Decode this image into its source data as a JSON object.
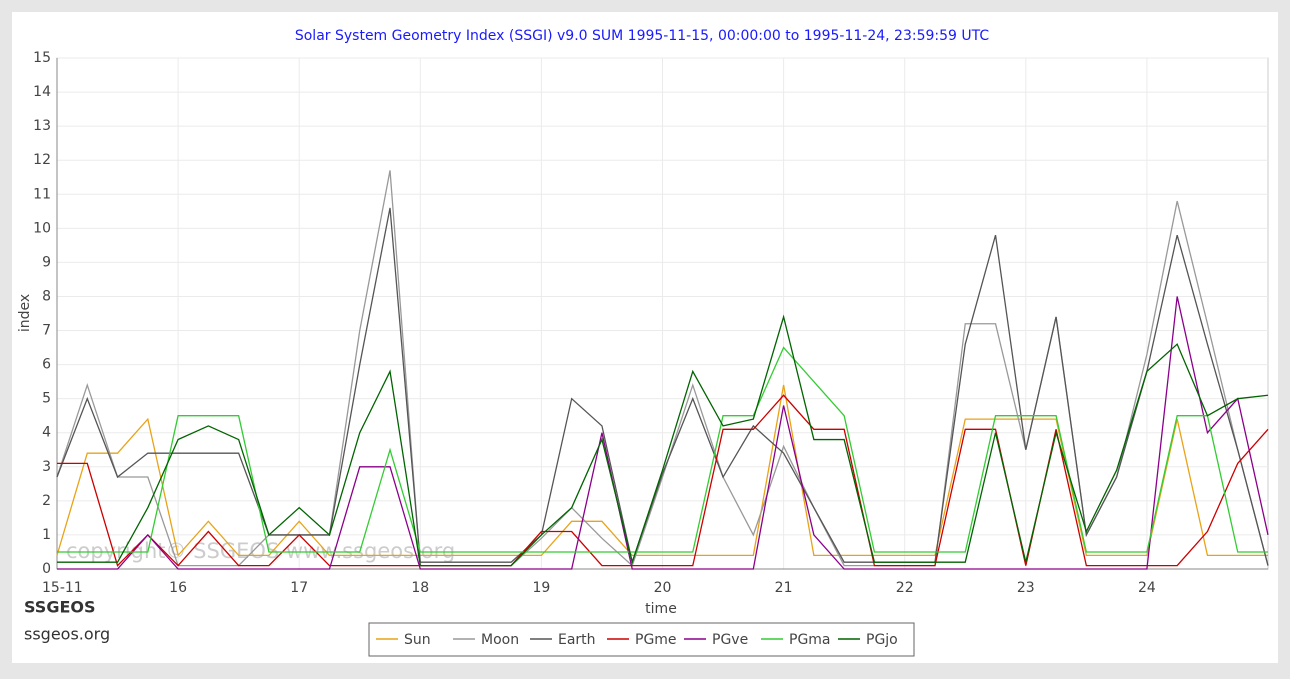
{
  "chart_data": {
    "type": "line",
    "title": "Solar System Geometry Index (SSGI) v9.0 SUM 1995-11-15, 00:00:00 to 1995-11-24, 23:59:59 UTC",
    "x_label": "time",
    "y_label": "index",
    "watermark": "copyright© SSGEOS   www.ssgeos.org",
    "brand": "SSGEOS",
    "brand_url": "ssgeos.org",
    "xlim": [
      15,
      25
    ],
    "ylim": [
      0,
      15
    ],
    "xticks": [
      {
        "value": 15,
        "label": "15-11"
      },
      16,
      17,
      18,
      19,
      20,
      21,
      22,
      23,
      24
    ],
    "yticks": [
      0,
      1,
      2,
      3,
      4,
      5,
      6,
      7,
      8,
      9,
      10,
      11,
      12,
      13,
      14,
      15
    ],
    "grid": true,
    "x": [
      15,
      15.25,
      15.5,
      15.75,
      16,
      16.25,
      16.5,
      16.75,
      17,
      17.25,
      17.5,
      17.75,
      18,
      18.25,
      18.5,
      18.75,
      19,
      19.25,
      19.5,
      19.75,
      20,
      20.25,
      20.5,
      20.75,
      21,
      21.25,
      21.5,
      21.75,
      22,
      22.25,
      22.5,
      22.75,
      23,
      23.25,
      23.5,
      23.75,
      24,
      24.25,
      24.5,
      24.75,
      25
    ],
    "series": [
      {
        "name": "Sun",
        "color": "#e8a317",
        "values": [
          0.4,
          3.4,
          3.4,
          4.4,
          0.4,
          1.4,
          0.4,
          0.4,
          1.4,
          0.4,
          0.4,
          0.4,
          0.4,
          0.4,
          0.4,
          0.4,
          0.4,
          1.4,
          1.4,
          0.4,
          0.4,
          0.4,
          0.4,
          0.4,
          5.4,
          0.4,
          0.4,
          0.4,
          0.4,
          0.4,
          4.4,
          4.4,
          4.4,
          4.4,
          0.4,
          0.4,
          0.4,
          4.4,
          0.4,
          0.4,
          0.4
        ]
      },
      {
        "name": "Moon",
        "color": "#999999",
        "values": [
          2.7,
          5.4,
          2.7,
          2.7,
          0.1,
          0.1,
          0.1,
          1,
          1,
          1,
          7,
          11.7,
          0.1,
          0.1,
          0.1,
          0.1,
          0.9,
          1.8,
          0.9,
          0.1,
          2.7,
          5.4,
          2.7,
          1,
          3.6,
          1.8,
          0.1,
          0.1,
          0.1,
          0.1,
          7.2,
          7.2,
          3.5,
          7.4,
          1,
          2.7,
          6.3,
          10.8,
          7.2,
          3.5,
          0.1
        ]
      },
      {
        "name": "Earth",
        "color": "#555555",
        "values": [
          2.7,
          5,
          2.7,
          3.4,
          3.4,
          3.4,
          3.4,
          1,
          1,
          1,
          6,
          10.6,
          0.2,
          0.2,
          0.2,
          0.2,
          1,
          5,
          4.2,
          0.2,
          2.8,
          5,
          2.7,
          4.2,
          3.4,
          1.8,
          0.2,
          0.2,
          0.2,
          0.2,
          6.6,
          9.8,
          3.5,
          7.4,
          1,
          2.7,
          5.8,
          9.8,
          6.6,
          3.5,
          0.1
        ]
      },
      {
        "name": "PGme",
        "color": "#cc0000",
        "values": [
          3.1,
          3.1,
          0.1,
          1,
          0.1,
          1.1,
          0.1,
          0.1,
          1,
          0.1,
          0.1,
          0.1,
          0.1,
          0.1,
          0.1,
          0.1,
          1.1,
          1.1,
          0.1,
          0.1,
          0.1,
          0.1,
          4.1,
          4.1,
          5.1,
          4.1,
          4.1,
          0.1,
          0.1,
          0.1,
          4.1,
          4.1,
          0.1,
          4.1,
          0.1,
          0.1,
          0.1,
          0.1,
          1.1,
          3.1,
          4.1
        ]
      },
      {
        "name": "PGve",
        "color": "#8b008b",
        "values": [
          0,
          0,
          0,
          1,
          0,
          0,
          0,
          0,
          0,
          0,
          3,
          3,
          0,
          0,
          0,
          0,
          0,
          0,
          4,
          0,
          0,
          0,
          0,
          0,
          4.8,
          1,
          0,
          0,
          0,
          0,
          0,
          0,
          0,
          0,
          0,
          0,
          0,
          8,
          4,
          5,
          1
        ]
      },
      {
        "name": "PGma",
        "color": "#33cc33",
        "values": [
          0.5,
          0.5,
          0.5,
          0.5,
          4.5,
          4.5,
          4.5,
          0.5,
          0.5,
          0.5,
          0.5,
          3.5,
          0.5,
          0.5,
          0.5,
          0.5,
          0.5,
          0.5,
          0.5,
          0.5,
          0.5,
          0.5,
          4.5,
          4.5,
          6.5,
          5.5,
          4.5,
          0.5,
          0.5,
          0.5,
          0.5,
          4.5,
          4.5,
          4.5,
          0.5,
          0.5,
          0.5,
          4.5,
          4.5,
          0.5,
          0.5
        ]
      },
      {
        "name": "PGjo",
        "color": "#006400",
        "values": [
          0.2,
          0.2,
          0.2,
          1.8,
          3.8,
          4.2,
          3.8,
          1,
          1.8,
          1,
          4,
          5.8,
          0.1,
          0.1,
          0.1,
          0.1,
          1,
          1.8,
          3.8,
          0.2,
          2.9,
          5.8,
          4.2,
          4.4,
          7.4,
          3.8,
          3.8,
          0.2,
          0.2,
          0.2,
          0.2,
          4,
          0.2,
          4,
          1.1,
          2.9,
          5.8,
          6.6,
          4.5,
          5,
          5.1
        ]
      }
    ]
  }
}
